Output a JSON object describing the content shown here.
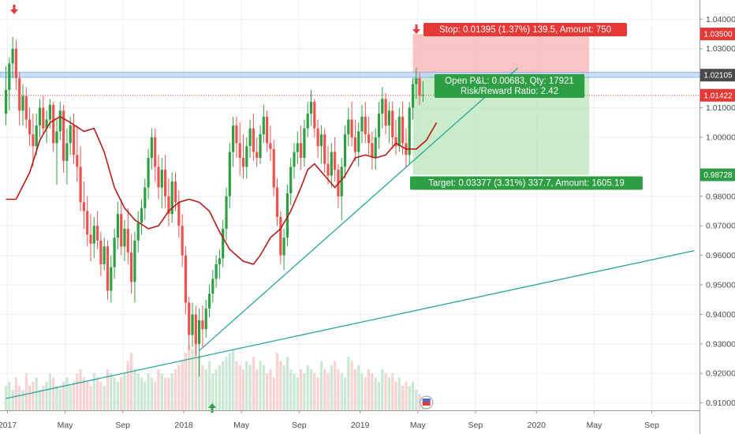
{
  "chart_data": {
    "type": "candlestick",
    "y_ticks": [
      "1.04000",
      "1.03000",
      "1.01000",
      "1.00000",
      "0.98000",
      "0.97000",
      "0.96000",
      "0.95000",
      "0.94000",
      "0.93000",
      "0.92000",
      "0.91000"
    ],
    "y_tick_values": [
      1.04,
      1.03,
      1.01,
      1.0,
      0.98,
      0.97,
      0.96,
      0.95,
      0.94,
      0.93,
      0.92,
      0.91
    ],
    "ylim": [
      0.9075,
      1.0465
    ],
    "x_labels": [
      "2017",
      "May",
      "Sep",
      "2018",
      "May",
      "Sep",
      "2019",
      "May",
      "Sep",
      "2020",
      "May",
      "Sep"
    ],
    "x_label_index": [
      0,
      17,
      34,
      52,
      69,
      86,
      104,
      121,
      138,
      156,
      173,
      190
    ],
    "price_tags": [
      {
        "value": 1.035,
        "text": "1.03500",
        "color": "#e53935"
      },
      {
        "value": 1.02105,
        "text": "1.02105",
        "color": "#4a4a4a"
      },
      {
        "value": 1.01422,
        "text": "1.01422",
        "color": "#e53935"
      },
      {
        "value": 0.98728,
        "text": "0.98728",
        "color": "#2e9e45"
      }
    ],
    "position": {
      "entry": 1.02105,
      "stop": 1.035,
      "target": 0.98728,
      "start_index": 120,
      "end_index": 172,
      "stop_label": "Stop: 0.01395 (1.37%) 139.5, Amount: 750",
      "target_label": "Target: 0.03377 (3.31%) 337.7, Amount: 1605.19",
      "pnl_label": "Open P&L: 0.00683, Qty: 17921",
      "rr_label": "Risk/Reward Ratio: 2.42"
    },
    "resistance_zone": [
      1.0203,
      1.022
    ],
    "current_price": 1.01422,
    "trendlines": [
      {
        "x1": 0,
        "y1": 0.9115,
        "x2": 203,
        "y2": 0.9616
      },
      {
        "x1": 57,
        "y1": 0.9277,
        "x2": 151,
        "y2": 1.0235
      }
    ],
    "sma": [
      [
        0,
        0.979
      ],
      [
        3,
        0.979
      ],
      [
        7,
        0.988
      ],
      [
        10,
        0.999
      ],
      [
        13,
        1.005
      ],
      [
        16,
        1.007
      ],
      [
        19,
        1.005
      ],
      [
        23,
        1.002
      ],
      [
        26,
        1.003
      ],
      [
        29,
        0.995
      ],
      [
        32,
        0.983
      ],
      [
        35,
        0.976
      ],
      [
        38,
        0.972
      ],
      [
        42,
        0.969
      ],
      [
        45,
        0.97
      ],
      [
        48,
        0.975
      ],
      [
        51,
        0.978
      ],
      [
        54,
        0.979
      ],
      [
        57,
        0.978
      ],
      [
        60,
        0.975
      ],
      [
        63,
        0.968
      ],
      [
        66,
        0.962
      ],
      [
        70,
        0.958
      ],
      [
        73,
        0.957
      ],
      [
        75,
        0.96
      ],
      [
        78,
        0.966
      ],
      [
        81,
        0.969
      ],
      [
        84,
        0.975
      ],
      [
        87,
        0.983
      ],
      [
        89,
        0.989
      ],
      [
        91,
        0.991
      ],
      [
        94,
        0.987
      ],
      [
        97,
        0.983
      ],
      [
        100,
        0.987
      ],
      [
        103,
        0.993
      ],
      [
        106,
        0.994
      ],
      [
        109,
        0.993
      ],
      [
        112,
        0.994
      ],
      [
        115,
        0.998
      ],
      [
        118,
        0.996
      ],
      [
        121,
        0.996
      ],
      [
        124,
        0.999
      ],
      [
        127,
        1.005
      ]
    ],
    "candles": [
      {
        "i": 0,
        "o": 1.008,
        "h": 1.024,
        "l": 1.004,
        "c": 1.016
      },
      {
        "i": 1,
        "o": 1.016,
        "h": 1.027,
        "l": 1.009,
        "c": 1.025
      },
      {
        "i": 2,
        "o": 1.025,
        "h": 1.034,
        "l": 1.02,
        "c": 1.03
      },
      {
        "i": 3,
        "o": 1.03,
        "h": 1.033,
        "l": 1.016,
        "c": 1.02
      },
      {
        "i": 4,
        "o": 1.02,
        "h": 1.022,
        "l": 1.004,
        "c": 1.009
      },
      {
        "i": 5,
        "o": 1.009,
        "h": 1.018,
        "l": 1.004,
        "c": 1.014
      },
      {
        "i": 6,
        "o": 1.014,
        "h": 1.017,
        "l": 1.003,
        "c": 1.006
      },
      {
        "i": 7,
        "o": 1.006,
        "h": 1.01,
        "l": 0.997,
        "c": 1.001
      },
      {
        "i": 8,
        "o": 1.001,
        "h": 1.008,
        "l": 0.99,
        "c": 0.997
      },
      {
        "i": 9,
        "o": 0.997,
        "h": 1.008,
        "l": 0.994,
        "c": 1.004
      },
      {
        "i": 10,
        "o": 1.004,
        "h": 1.013,
        "l": 1.0,
        "c": 1.01
      },
      {
        "i": 11,
        "o": 1.01,
        "h": 1.014,
        "l": 1.001,
        "c": 1.003
      },
      {
        "i": 12,
        "o": 1.003,
        "h": 1.009,
        "l": 0.998,
        "c": 1.006
      },
      {
        "i": 13,
        "o": 1.006,
        "h": 1.013,
        "l": 1.003,
        "c": 1.011
      },
      {
        "i": 14,
        "o": 1.011,
        "h": 1.012,
        "l": 0.995,
        "c": 0.998
      },
      {
        "i": 15,
        "o": 0.998,
        "h": 1.006,
        "l": 0.984,
        "c": 1.002
      },
      {
        "i": 16,
        "o": 1.002,
        "h": 1.012,
        "l": 0.999,
        "c": 1.009
      },
      {
        "i": 17,
        "o": 1.009,
        "h": 1.011,
        "l": 0.988,
        "c": 0.992
      },
      {
        "i": 18,
        "o": 0.992,
        "h": 1.003,
        "l": 0.984,
        "c": 0.998
      },
      {
        "i": 19,
        "o": 0.998,
        "h": 1.007,
        "l": 0.994,
        "c": 1.004
      },
      {
        "i": 20,
        "o": 1.004,
        "h": 1.008,
        "l": 0.991,
        "c": 0.994
      },
      {
        "i": 21,
        "o": 0.994,
        "h": 1.004,
        "l": 0.985,
        "c": 0.99
      },
      {
        "i": 22,
        "o": 0.99,
        "h": 0.997,
        "l": 0.975,
        "c": 0.978
      },
      {
        "i": 23,
        "o": 0.978,
        "h": 0.985,
        "l": 0.969,
        "c": 0.975
      },
      {
        "i": 24,
        "o": 0.975,
        "h": 0.98,
        "l": 0.963,
        "c": 0.967
      },
      {
        "i": 25,
        "o": 0.967,
        "h": 0.974,
        "l": 0.958,
        "c": 0.964
      },
      {
        "i": 26,
        "o": 0.964,
        "h": 0.973,
        "l": 0.959,
        "c": 0.97
      },
      {
        "i": 27,
        "o": 0.97,
        "h": 0.975,
        "l": 0.962,
        "c": 0.965
      },
      {
        "i": 28,
        "o": 0.965,
        "h": 0.968,
        "l": 0.953,
        "c": 0.957
      },
      {
        "i": 29,
        "o": 0.957,
        "h": 0.966,
        "l": 0.955,
        "c": 0.963
      },
      {
        "i": 30,
        "o": 0.963,
        "h": 0.965,
        "l": 0.945,
        "c": 0.948
      },
      {
        "i": 31,
        "o": 0.948,
        "h": 0.96,
        "l": 0.944,
        "c": 0.956
      },
      {
        "i": 32,
        "o": 0.956,
        "h": 0.969,
        "l": 0.952,
        "c": 0.966
      },
      {
        "i": 33,
        "o": 0.966,
        "h": 0.978,
        "l": 0.962,
        "c": 0.974
      },
      {
        "i": 34,
        "o": 0.974,
        "h": 0.979,
        "l": 0.96,
        "c": 0.963
      },
      {
        "i": 35,
        "o": 0.963,
        "h": 0.972,
        "l": 0.958,
        "c": 0.969
      },
      {
        "i": 36,
        "o": 0.969,
        "h": 0.976,
        "l": 0.957,
        "c": 0.961
      },
      {
        "i": 37,
        "o": 0.961,
        "h": 0.967,
        "l": 0.947,
        "c": 0.951
      },
      {
        "i": 38,
        "o": 0.951,
        "h": 0.968,
        "l": 0.944,
        "c": 0.965
      },
      {
        "i": 39,
        "o": 0.965,
        "h": 0.975,
        "l": 0.961,
        "c": 0.971
      },
      {
        "i": 40,
        "o": 0.971,
        "h": 0.979,
        "l": 0.967,
        "c": 0.976
      },
      {
        "i": 41,
        "o": 0.976,
        "h": 0.986,
        "l": 0.972,
        "c": 0.983
      },
      {
        "i": 42,
        "o": 0.983,
        "h": 0.996,
        "l": 0.979,
        "c": 0.993
      },
      {
        "i": 43,
        "o": 0.993,
        "h": 1.003,
        "l": 0.989,
        "c": 1.0
      },
      {
        "i": 44,
        "o": 1.0,
        "h": 1.003,
        "l": 0.985,
        "c": 0.99
      },
      {
        "i": 45,
        "o": 0.99,
        "h": 0.994,
        "l": 0.979,
        "c": 0.983
      },
      {
        "i": 46,
        "o": 0.983,
        "h": 0.993,
        "l": 0.976,
        "c": 0.989
      },
      {
        "i": 47,
        "o": 0.989,
        "h": 0.994,
        "l": 0.976,
        "c": 0.98
      },
      {
        "i": 48,
        "o": 0.98,
        "h": 0.986,
        "l": 0.97,
        "c": 0.974
      },
      {
        "i": 49,
        "o": 0.974,
        "h": 0.988,
        "l": 0.971,
        "c": 0.985
      },
      {
        "i": 50,
        "o": 0.985,
        "h": 0.988,
        "l": 0.975,
        "c": 0.978
      },
      {
        "i": 51,
        "o": 0.978,
        "h": 0.982,
        "l": 0.966,
        "c": 0.97
      },
      {
        "i": 52,
        "o": 0.97,
        "h": 0.974,
        "l": 0.956,
        "c": 0.96
      },
      {
        "i": 53,
        "o": 0.96,
        "h": 0.963,
        "l": 0.94,
        "c": 0.944
      },
      {
        "i": 54,
        "o": 0.944,
        "h": 0.946,
        "l": 0.928,
        "c": 0.933
      },
      {
        "i": 55,
        "o": 0.933,
        "h": 0.944,
        "l": 0.929,
        "c": 0.94
      },
      {
        "i": 56,
        "o": 0.94,
        "h": 0.943,
        "l": 0.926,
        "c": 0.93
      },
      {
        "i": 57,
        "o": 0.93,
        "h": 0.942,
        "l": 0.919,
        "c": 0.938
      },
      {
        "i": 58,
        "o": 0.938,
        "h": 0.943,
        "l": 0.929,
        "c": 0.935
      },
      {
        "i": 59,
        "o": 0.935,
        "h": 0.945,
        "l": 0.932,
        "c": 0.942
      },
      {
        "i": 60,
        "o": 0.942,
        "h": 0.95,
        "l": 0.939,
        "c": 0.947
      },
      {
        "i": 61,
        "o": 0.947,
        "h": 0.955,
        "l": 0.944,
        "c": 0.952
      },
      {
        "i": 62,
        "o": 0.952,
        "h": 0.96,
        "l": 0.949,
        "c": 0.957
      },
      {
        "i": 63,
        "o": 0.957,
        "h": 0.962,
        "l": 0.952,
        "c": 0.959
      },
      {
        "i": 64,
        "o": 0.959,
        "h": 0.972,
        "l": 0.956,
        "c": 0.969
      },
      {
        "i": 65,
        "o": 0.969,
        "h": 0.983,
        "l": 0.965,
        "c": 0.98
      },
      {
        "i": 66,
        "o": 0.98,
        "h": 0.998,
        "l": 0.976,
        "c": 0.995
      },
      {
        "i": 67,
        "o": 0.995,
        "h": 1.007,
        "l": 0.99,
        "c": 1.004
      },
      {
        "i": 68,
        "o": 1.004,
        "h": 1.007,
        "l": 0.993,
        "c": 0.998
      },
      {
        "i": 69,
        "o": 0.998,
        "h": 1.005,
        "l": 0.987,
        "c": 0.993
      },
      {
        "i": 70,
        "o": 0.993,
        "h": 1.001,
        "l": 0.986,
        "c": 0.99
      },
      {
        "i": 71,
        "o": 0.99,
        "h": 1.0,
        "l": 0.986,
        "c": 0.997
      },
      {
        "i": 72,
        "o": 0.997,
        "h": 1.006,
        "l": 0.993,
        "c": 1.003
      },
      {
        "i": 73,
        "o": 1.003,
        "h": 1.008,
        "l": 0.992,
        "c": 0.995
      },
      {
        "i": 74,
        "o": 0.995,
        "h": 1.0,
        "l": 0.99,
        "c": 0.993
      },
      {
        "i": 75,
        "o": 0.993,
        "h": 1.004,
        "l": 0.991,
        "c": 1.001
      },
      {
        "i": 76,
        "o": 1.001,
        "h": 1.011,
        "l": 0.998,
        "c": 1.007
      },
      {
        "i": 77,
        "o": 1.007,
        "h": 1.009,
        "l": 0.995,
        "c": 0.998
      },
      {
        "i": 78,
        "o": 0.998,
        "h": 1.004,
        "l": 0.992,
        "c": 0.996
      },
      {
        "i": 79,
        "o": 0.996,
        "h": 0.999,
        "l": 0.98,
        "c": 0.983
      },
      {
        "i": 80,
        "o": 0.983,
        "h": 0.986,
        "l": 0.97,
        "c": 0.973
      },
      {
        "i": 81,
        "o": 0.973,
        "h": 0.975,
        "l": 0.957,
        "c": 0.96
      },
      {
        "i": 82,
        "o": 0.96,
        "h": 0.969,
        "l": 0.955,
        "c": 0.966
      },
      {
        "i": 83,
        "o": 0.966,
        "h": 0.984,
        "l": 0.963,
        "c": 0.981
      },
      {
        "i": 84,
        "o": 0.981,
        "h": 0.993,
        "l": 0.977,
        "c": 0.99
      },
      {
        "i": 85,
        "o": 0.99,
        "h": 0.998,
        "l": 0.986,
        "c": 0.995
      },
      {
        "i": 86,
        "o": 0.995,
        "h": 1.002,
        "l": 0.991,
        "c": 0.998
      },
      {
        "i": 87,
        "o": 0.998,
        "h": 1.004,
        "l": 0.989,
        "c": 0.993
      },
      {
        "i": 88,
        "o": 0.993,
        "h": 1.006,
        "l": 0.99,
        "c": 1.003
      },
      {
        "i": 89,
        "o": 1.003,
        "h": 1.012,
        "l": 1.0,
        "c": 1.008
      },
      {
        "i": 90,
        "o": 1.008,
        "h": 1.016,
        "l": 1.004,
        "c": 1.012
      },
      {
        "i": 91,
        "o": 1.012,
        "h": 1.013,
        "l": 1.0,
        "c": 1.003
      },
      {
        "i": 92,
        "o": 1.003,
        "h": 1.006,
        "l": 0.993,
        "c": 0.997
      },
      {
        "i": 93,
        "o": 0.997,
        "h": 1.004,
        "l": 0.991,
        "c": 1.001
      },
      {
        "i": 94,
        "o": 1.001,
        "h": 1.003,
        "l": 0.988,
        "c": 0.991
      },
      {
        "i": 95,
        "o": 0.991,
        "h": 0.997,
        "l": 0.984,
        "c": 0.987
      },
      {
        "i": 96,
        "o": 0.987,
        "h": 0.998,
        "l": 0.983,
        "c": 0.995
      },
      {
        "i": 97,
        "o": 0.995,
        "h": 1.0,
        "l": 0.985,
        "c": 0.989
      },
      {
        "i": 98,
        "o": 0.989,
        "h": 0.991,
        "l": 0.976,
        "c": 0.98
      },
      {
        "i": 99,
        "o": 0.98,
        "h": 0.993,
        "l": 0.972,
        "c": 0.99
      },
      {
        "i": 100,
        "o": 0.99,
        "h": 1.004,
        "l": 0.986,
        "c": 1.001
      },
      {
        "i": 101,
        "o": 1.001,
        "h": 1.01,
        "l": 0.997,
        "c": 1.006
      },
      {
        "i": 102,
        "o": 1.006,
        "h": 1.012,
        "l": 0.997,
        "c": 1.0
      },
      {
        "i": 103,
        "o": 1.0,
        "h": 1.006,
        "l": 0.992,
        "c": 0.995
      },
      {
        "i": 104,
        "o": 0.995,
        "h": 1.005,
        "l": 0.99,
        "c": 1.002
      },
      {
        "i": 105,
        "o": 1.002,
        "h": 1.011,
        "l": 0.998,
        "c": 1.007
      },
      {
        "i": 106,
        "o": 1.007,
        "h": 1.012,
        "l": 0.998,
        "c": 1.001
      },
      {
        "i": 107,
        "o": 1.001,
        "h": 1.007,
        "l": 0.994,
        "c": 0.998
      },
      {
        "i": 108,
        "o": 0.998,
        "h": 1.002,
        "l": 0.989,
        "c": 0.993
      },
      {
        "i": 109,
        "o": 0.993,
        "h": 1.003,
        "l": 0.989,
        "c": 1.0
      },
      {
        "i": 110,
        "o": 1.0,
        "h": 1.012,
        "l": 0.996,
        "c": 1.008
      },
      {
        "i": 111,
        "o": 1.008,
        "h": 1.017,
        "l": 1.003,
        "c": 1.013
      },
      {
        "i": 112,
        "o": 1.013,
        "h": 1.015,
        "l": 1.001,
        "c": 1.004
      },
      {
        "i": 113,
        "o": 1.004,
        "h": 1.012,
        "l": 0.998,
        "c": 1.009
      },
      {
        "i": 114,
        "o": 1.009,
        "h": 1.012,
        "l": 0.996,
        "c": 1.0
      },
      {
        "i": 115,
        "o": 1.0,
        "h": 1.006,
        "l": 0.994,
        "c": 0.997
      },
      {
        "i": 116,
        "o": 0.997,
        "h": 1.01,
        "l": 0.995,
        "c": 1.007
      },
      {
        "i": 117,
        "o": 1.007,
        "h": 1.012,
        "l": 0.994,
        "c": 0.998
      },
      {
        "i": 118,
        "o": 0.998,
        "h": 1.003,
        "l": 0.99,
        "c": 0.994
      },
      {
        "i": 119,
        "o": 0.994,
        "h": 1.012,
        "l": 0.991,
        "c": 1.01
      },
      {
        "i": 120,
        "o": 1.01,
        "h": 1.02,
        "l": 1.006,
        "c": 1.018
      },
      {
        "i": 121,
        "o": 1.018,
        "h": 1.0235,
        "l": 1.013,
        "c": 1.02
      },
      {
        "i": 122,
        "o": 1.02,
        "h": 1.022,
        "l": 1.011,
        "c": 1.014
      },
      {
        "i": 123,
        "o": 1.014,
        "h": 1.019,
        "l": 1.012,
        "c": 1.01422
      }
    ],
    "volume": [
      6,
      7,
      5,
      8,
      6,
      5,
      9,
      6,
      7,
      8,
      5,
      6,
      7,
      9,
      8,
      6,
      5,
      7,
      8,
      6,
      7,
      9,
      10,
      8,
      7,
      6,
      9,
      8,
      7,
      6,
      10,
      9,
      8,
      7,
      8,
      9,
      12,
      14,
      10,
      9,
      8,
      7,
      9,
      8,
      7,
      10,
      9,
      8,
      8,
      9,
      10,
      11,
      12,
      14,
      16,
      15,
      18,
      13,
      11,
      10,
      12,
      9,
      10,
      11,
      12,
      13,
      14,
      15,
      12,
      11,
      10,
      12,
      11,
      13,
      10,
      12,
      11,
      9,
      10,
      8,
      14,
      12,
      11,
      13,
      10,
      9,
      8,
      10,
      9,
      11,
      10,
      9,
      8,
      12,
      10,
      9,
      11,
      12,
      10,
      9,
      8,
      13,
      12,
      10,
      11,
      9,
      8,
      10,
      9,
      8,
      7,
      10,
      9,
      8,
      9,
      7,
      8,
      6,
      7,
      6,
      7,
      5,
      4,
      3
    ]
  }
}
